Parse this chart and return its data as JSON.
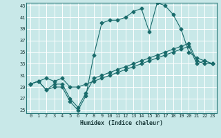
{
  "xlabel": "Humidex (Indice chaleur)",
  "bg_color": "#c8e8e8",
  "grid_color": "#ffffff",
  "line_color": "#1a6b6b",
  "xlim": [
    -0.5,
    23.5
  ],
  "ylim": [
    24.5,
    43.5
  ],
  "xticks": [
    0,
    1,
    2,
    3,
    4,
    5,
    6,
    7,
    8,
    9,
    10,
    11,
    12,
    13,
    14,
    15,
    16,
    17,
    18,
    19,
    20,
    21,
    22,
    23
  ],
  "yticks": [
    25,
    27,
    29,
    31,
    33,
    35,
    37,
    39,
    41,
    43
  ],
  "line1_x": [
    0,
    1,
    2,
    3,
    4,
    5,
    6,
    7,
    8,
    9,
    10,
    11,
    12,
    13,
    14,
    15,
    16,
    17,
    18,
    19,
    20,
    21,
    22,
    23
  ],
  "line1_y": [
    29.5,
    30.0,
    28.5,
    29.0,
    29.0,
    26.5,
    25.0,
    27.5,
    34.5,
    40.0,
    40.5,
    40.5,
    41.0,
    42.0,
    42.5,
    38.5,
    43.5,
    43.0,
    41.5,
    39.0,
    35.0,
    34.0,
    33.5,
    33.0
  ],
  "line2_x": [
    0,
    1,
    2,
    3,
    4,
    5,
    6,
    7,
    8,
    9,
    10,
    11,
    12,
    13,
    14,
    15,
    16,
    17,
    18,
    19,
    20,
    21,
    22,
    23
  ],
  "line2_y": [
    29.5,
    30.0,
    28.5,
    29.5,
    29.5,
    27.0,
    25.5,
    28.0,
    30.5,
    31.0,
    31.5,
    32.0,
    32.5,
    33.0,
    33.5,
    34.0,
    34.5,
    35.0,
    35.5,
    36.0,
    36.5,
    33.5,
    33.0,
    33.0
  ],
  "line3_x": [
    0,
    1,
    2,
    3,
    4,
    5,
    6,
    7,
    8,
    9,
    10,
    11,
    12,
    13,
    14,
    15,
    16,
    17,
    18,
    19,
    20,
    21,
    22,
    23
  ],
  "line3_y": [
    29.5,
    30.0,
    30.5,
    30.0,
    30.5,
    29.0,
    29.0,
    29.5,
    30.0,
    30.5,
    31.0,
    31.5,
    32.0,
    32.5,
    33.0,
    33.5,
    34.0,
    34.5,
    35.0,
    35.5,
    36.0,
    33.0,
    33.5,
    33.0
  ]
}
